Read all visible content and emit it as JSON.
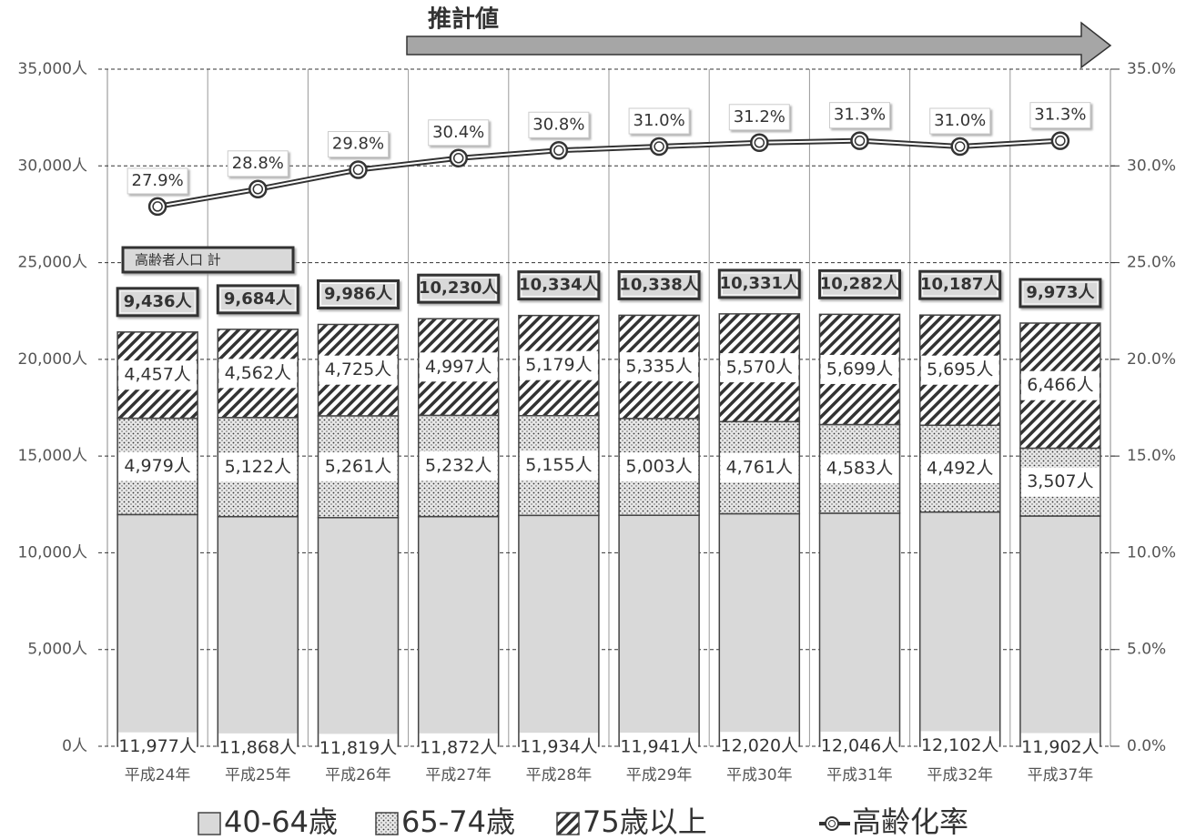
{
  "chart_data": {
    "type": "stacked_bar_line",
    "estimate_label": "推計値",
    "categories": [
      "平成24年",
      "平成25年",
      "平成26年",
      "平成27年",
      "平成28年",
      "平成29年",
      "平成30年",
      "平成31年",
      "平成32年",
      "平成37年"
    ],
    "series": [
      {
        "name": "40-64歳",
        "color": "#d9d9d9",
        "pattern": "solid",
        "values": [
          11977,
          11868,
          11819,
          11872,
          11934,
          11941,
          12020,
          12046,
          12102,
          11902
        ],
        "value_labels": [
          "11,977人",
          "11,868人",
          "11,819人",
          "11,872人",
          "11,934人",
          "11,941人",
          "12,020人",
          "12,046人",
          "12,102人",
          "11,902人"
        ]
      },
      {
        "name": "65-74歳",
        "color": "#333333",
        "pattern": "dots",
        "values": [
          4979,
          5122,
          5261,
          5232,
          5155,
          5003,
          4761,
          4583,
          4492,
          3507
        ],
        "value_labels": [
          "4,979人",
          "5,122人",
          "5,261人",
          "5,232人",
          "5,155人",
          "5,003人",
          "4,761人",
          "4,583人",
          "4,492人",
          "3,507人"
        ]
      },
      {
        "name": "75歳以上",
        "color": "#333333",
        "pattern": "hatch",
        "values": [
          4457,
          4562,
          4725,
          4997,
          5179,
          5335,
          5570,
          5699,
          5695,
          6466
        ],
        "value_labels": [
          "4,457人",
          "4,562人",
          "4,725人",
          "4,997人",
          "5,179人",
          "5,335人",
          "5,570人",
          "5,699人",
          "5,695人",
          "6,466人"
        ]
      },
      {
        "name": "高齢化率",
        "type": "line",
        "axis": "y2",
        "color": "#333333",
        "values": [
          27.9,
          28.8,
          29.8,
          30.4,
          30.8,
          31.0,
          31.2,
          31.3,
          31.0,
          31.3
        ],
        "value_labels": [
          "27.9%",
          "28.8%",
          "29.8%",
          "30.4%",
          "30.8%",
          "31.0%",
          "31.2%",
          "31.3%",
          "31.0%",
          "31.3%"
        ]
      }
    ],
    "totals": {
      "name": "高齢者人口 計",
      "values": [
        9436,
        9684,
        9986,
        10230,
        10334,
        10338,
        10331,
        10282,
        10187,
        9973
      ],
      "value_labels": [
        "9,436人",
        "9,684人",
        "9,986人",
        "10,230人",
        "10,334人",
        "10,338人",
        "10,331人",
        "10,282人",
        "10,187人",
        "9,973人"
      ]
    },
    "ylim": [
      0,
      35000
    ],
    "yticks": [
      {
        "value": 0,
        "label": "0人"
      },
      {
        "value": 5000,
        "label": "5,000人"
      },
      {
        "value": 10000,
        "label": "10,000人"
      },
      {
        "value": 15000,
        "label": "15,000人"
      },
      {
        "value": 20000,
        "label": "20,000人"
      },
      {
        "value": 25000,
        "label": "25,000人"
      },
      {
        "value": 30000,
        "label": "30,000人"
      },
      {
        "value": 35000,
        "label": "35,000人"
      }
    ],
    "y2lim": [
      0,
      35
    ],
    "y2ticks": [
      {
        "value": 0,
        "label": "0.0%"
      },
      {
        "value": 5,
        "label": "5.0%"
      },
      {
        "value": 10,
        "label": "10.0%"
      },
      {
        "value": 15,
        "label": "15.0%"
      },
      {
        "value": 20,
        "label": "20.0%"
      },
      {
        "value": 25,
        "label": "25.0%"
      },
      {
        "value": 30,
        "label": "30.0%"
      },
      {
        "value": 35,
        "label": "35.0%"
      }
    ],
    "grid": true
  }
}
